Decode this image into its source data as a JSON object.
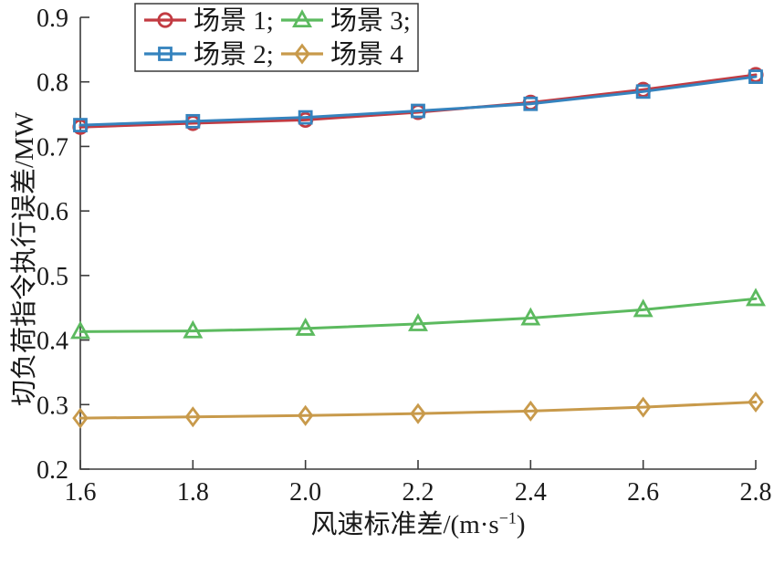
{
  "figure": {
    "background": "#ffffff"
  },
  "style": {
    "axis_color": "#3a3a3a",
    "text_color": "#1a1a1a",
    "legend_fill": "#ffffff"
  },
  "chart_data": {
    "type": "line",
    "x": [
      1.6,
      1.8,
      2.0,
      2.2,
      2.4,
      2.6,
      2.8
    ],
    "series": [
      {
        "name": "场景 1",
        "legend_label": "场景 1;",
        "color": "#C23B42",
        "marker": "circle",
        "values": [
          0.73,
          0.736,
          0.741,
          0.753,
          0.768,
          0.788,
          0.811
        ]
      },
      {
        "name": "场景 2",
        "legend_label": "场景 2;",
        "color": "#3583BE",
        "marker": "square",
        "values": [
          0.733,
          0.739,
          0.745,
          0.755,
          0.766,
          0.785,
          0.808
        ]
      },
      {
        "name": "场景 3",
        "legend_label": "场景 3;",
        "color": "#5CBA5F",
        "marker": "triangle",
        "values": [
          0.413,
          0.414,
          0.418,
          0.425,
          0.434,
          0.447,
          0.464
        ]
      },
      {
        "name": "场景 4",
        "legend_label": "场景 4",
        "color": "#C89A4B",
        "marker": "diamond",
        "values": [
          0.279,
          0.281,
          0.283,
          0.286,
          0.29,
          0.296,
          0.304
        ]
      }
    ],
    "xlabel": {
      "text": "风速标准差/(m·s",
      "sup": "−1",
      "suffix": ")"
    },
    "ylabel": "切负荷指令执行误差/MW",
    "xlim": [
      1.6,
      2.8
    ],
    "ylim": [
      0.2,
      0.9
    ],
    "x_ticks": [
      "1.6",
      "1.8",
      "2.0",
      "2.2",
      "2.4",
      "2.6",
      "2.8"
    ],
    "y_ticks": [
      "0.2",
      "0.3",
      "0.4",
      "0.5",
      "0.6",
      "0.7",
      "0.8",
      "0.9"
    ],
    "grid": false,
    "legend_position": "top-left-inside",
    "legend_rows": [
      [
        "场景 1;",
        "场景 3;"
      ],
      [
        "场景 2;",
        "场景 4"
      ]
    ]
  }
}
